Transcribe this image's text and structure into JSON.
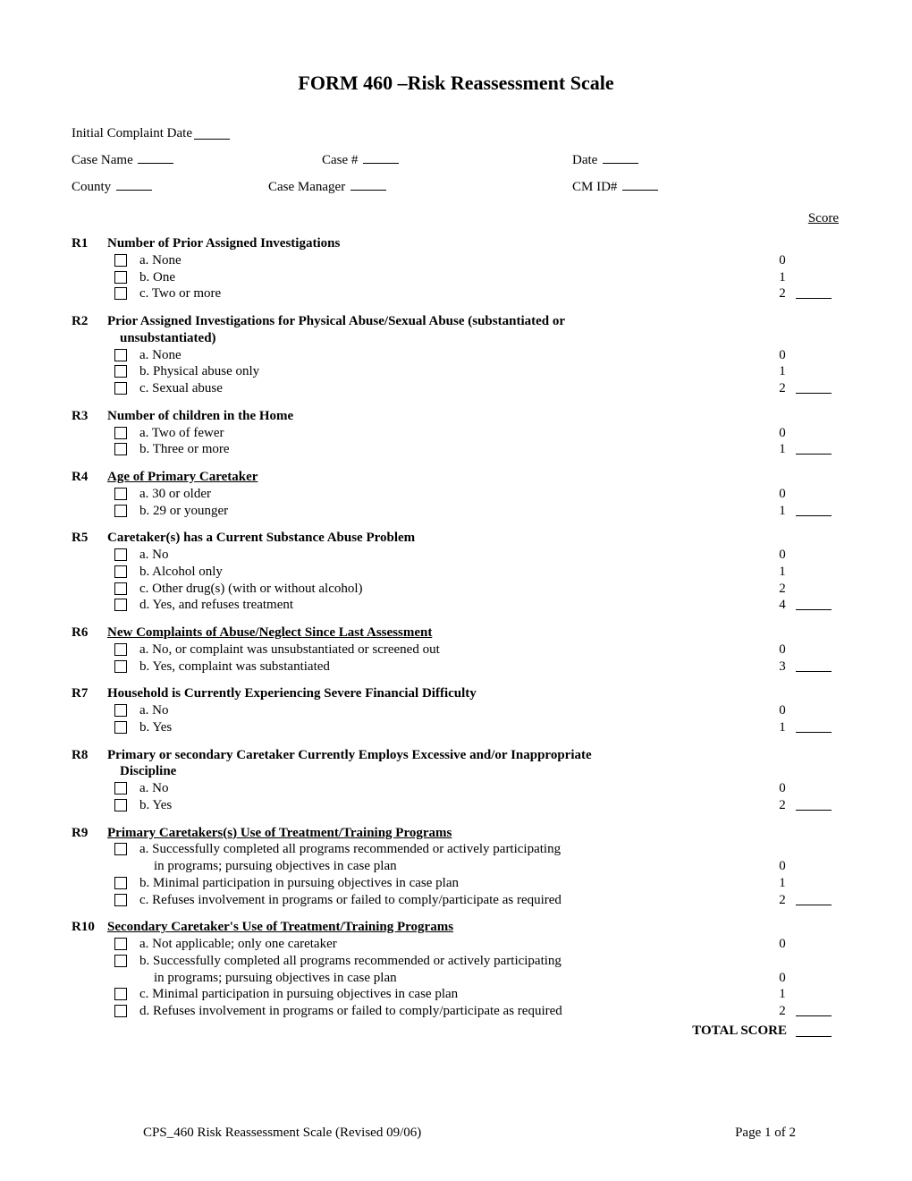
{
  "title": "FORM 460 –Risk Reassessment Scale",
  "header": {
    "initial_complaint_date_label": "Initial Complaint Date",
    "case_name_label": "Case Name",
    "case_number_label": "Case #",
    "date_label": "Date",
    "county_label": "County",
    "case_manager_label": "Case Manager",
    "cm_id_label": "CM ID#"
  },
  "score_header": "Score",
  "questions": [
    {
      "id": "R1",
      "title_plain": "Number of Prior Assigned Investigations",
      "options": [
        {
          "cb": true,
          "label": "a.  None",
          "pts": "0",
          "score_line": false
        },
        {
          "cb": true,
          "label": "b.  One",
          "pts": "1",
          "score_line": false
        },
        {
          "cb": true,
          "label": "c.  Two or more",
          "pts": "2",
          "score_line": true
        }
      ]
    },
    {
      "id": "R2",
      "title_plain": "Prior Assigned Investigations for Physical Abuse/Sexual Abuse (substantiated or",
      "title_line2": "unsubstantiated)",
      "options": [
        {
          "cb": true,
          "label": "a.  None",
          "pts": "0",
          "score_line": false
        },
        {
          "cb": true,
          "label": "b. Physical abuse only",
          "pts": "1",
          "score_line": false
        },
        {
          "cb": true,
          "label": "c. Sexual abuse",
          "pts": "2",
          "score_line": true
        }
      ]
    },
    {
      "id": "R3",
      "title_plain": "Number of children in the Home",
      "options": [
        {
          "cb": true,
          "label": "a. Two of fewer",
          "pts": "0",
          "score_line": false
        },
        {
          "cb": true,
          "label": "b. Three or more",
          "pts": "1",
          "score_line": true
        }
      ]
    },
    {
      "id": "R4",
      "title_under": "Age of Primary Caretaker",
      "options": [
        {
          "cb": true,
          "label": "a. 30 or older",
          "pts": "0",
          "score_line": false
        },
        {
          "cb": true,
          "label": "b. 29 or younger",
          "pts": "1",
          "score_line": true
        }
      ]
    },
    {
      "id": "R5",
      "title_plain": "Caretaker(s) has a Current Substance Abuse Problem",
      "options": [
        {
          "cb": true,
          "label": "a.  No",
          "pts": "0",
          "score_line": false
        },
        {
          "cb": true,
          "label": "b.  Alcohol only",
          "pts": "1",
          "score_line": false
        },
        {
          "cb": true,
          "label": "c.  Other drug(s) (with or without alcohol)",
          "pts": "2",
          "score_line": false
        },
        {
          "cb": true,
          "label": "d.  Yes, and refuses treatment",
          "pts": "4",
          "score_line": true
        }
      ]
    },
    {
      "id": "R6",
      "title_under": "New Complaints of Abuse/Neglect Since Last Assessment",
      "options": [
        {
          "cb": true,
          "label": "a.  No, or complaint was unsubstantiated or screened out",
          "pts": "0",
          "score_line": false
        },
        {
          "cb": true,
          "label": "b. Yes, complaint was substantiated",
          "pts": "3",
          "score_line": true
        }
      ]
    },
    {
      "id": "R7",
      "title_plain": "Household is Currently Experiencing Severe Financial Difficulty",
      "options": [
        {
          "cb": true,
          "label": "a.  No",
          "pts": "0",
          "score_line": false
        },
        {
          "cb": true,
          "label": "b.  Yes",
          "pts": "1",
          "score_line": true
        }
      ]
    },
    {
      "id": "R8",
      "title_plain": "Primary or secondary Caretaker Currently Employs Excessive and/or Inappropriate",
      "title_line2": "Discipline",
      "options": [
        {
          "cb": true,
          "label": "a.  No",
          "pts": "0",
          "score_line": false
        },
        {
          "cb": true,
          "label": "b.  Yes",
          "pts": "2",
          "score_line": true
        }
      ]
    },
    {
      "id": "R9",
      "title_under": "Primary Caretakers(s) Use of Treatment/Training Programs",
      "options": [
        {
          "cb": true,
          "label": "a.  Successfully completed all programs recommended or actively participating",
          "pts": "",
          "score_line": false
        },
        {
          "cb": false,
          "label": "in programs; pursuing objectives in case plan",
          "sub": true,
          "pts": "0",
          "score_line": false
        },
        {
          "cb": true,
          "label": "b.  Minimal participation in pursuing objectives in case plan",
          "pts": "1",
          "score_line": false
        },
        {
          "cb": true,
          "label": "c.  Refuses involvement in programs or failed to comply/participate as required",
          "pts": "2",
          "score_line": true
        }
      ]
    },
    {
      "id": "R10",
      "title_under": " Secondary Caretaker's Use of Treatment/Training Programs",
      "options": [
        {
          "cb": true,
          "label": "a.  Not applicable; only one caretaker",
          "pts": "0",
          "score_line": false
        },
        {
          "cb": true,
          "label": "b.  Successfully completed all programs recommended or actively participating",
          "pts": "",
          "score_line": false
        },
        {
          "cb": false,
          "label": "in programs; pursuing objectives in case plan",
          "sub": true,
          "pts": "0",
          "score_line": false
        },
        {
          "cb": true,
          "label": "c.  Minimal participation in pursuing objectives in case plan",
          "pts": "1",
          "score_line": false
        },
        {
          "cb": true,
          "label": "d.  Refuses involvement in programs or failed to comply/participate as required",
          "pts": "2",
          "score_line": true
        }
      ]
    }
  ],
  "total_label": "TOTAL SCORE",
  "footer": {
    "left": "CPS_460 Risk Reassessment Scale (Revised 09/06)",
    "right": "Page 1 of 2"
  }
}
